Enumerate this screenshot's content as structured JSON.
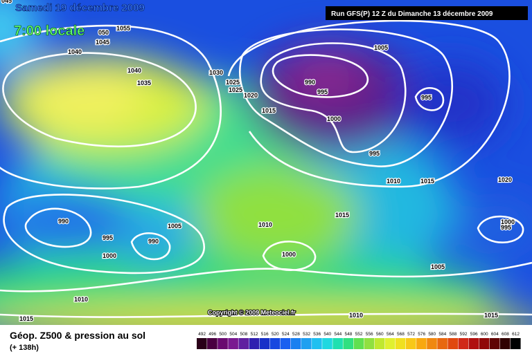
{
  "header": {
    "title": "Samedi 19 décembre 2009",
    "time": "7:00 locale",
    "run": "Run GFS(P) 12 Z du Dimanche 13 décembre 2009"
  },
  "isobar_labels": [
    "045",
    "1055",
    "050",
    "1045",
    "1040",
    "1040",
    "1035",
    "1030",
    "1025",
    "1025",
    "1020",
    "1015",
    "1005",
    "990",
    "995",
    "1000",
    "995",
    "995",
    "1010",
    "1015",
    "1020",
    "990",
    "1005",
    "1010",
    "1015",
    "995",
    "990",
    "1000",
    "1000",
    "1000",
    "995",
    "1005",
    "1010",
    "1015",
    "1010",
    "1015"
  ],
  "copyright": "Copyright © 2009 Meteociel.fr",
  "footer": {
    "title": "Géop. Z500 & pression au sol",
    "lead": "(+ 138h)"
  },
  "scale": [
    "492",
    "496",
    "500",
    "504",
    "508",
    "512",
    "516",
    "520",
    "524",
    "528",
    "532",
    "536",
    "540",
    "544",
    "548",
    "552",
    "556",
    "560",
    "564",
    "568",
    "572",
    "576",
    "580",
    "584",
    "588",
    "592",
    "596",
    "600",
    "604",
    "608",
    "612"
  ]
}
